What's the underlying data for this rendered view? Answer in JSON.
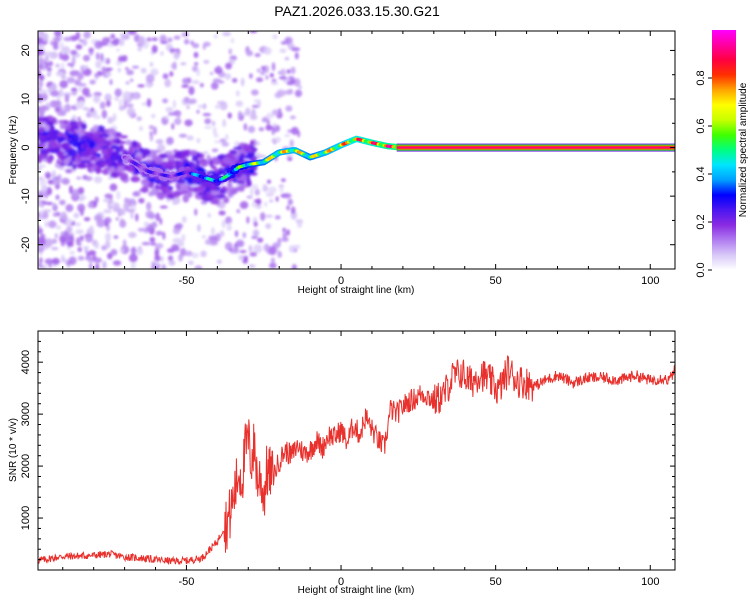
{
  "title": "PAZ1.2026.033.15.30.G21",
  "chart_data": [
    {
      "type": "heatmap",
      "name": "spectrogram",
      "xlabel": "Height of straight line (km)",
      "ylabel": "Frequency (Hz)",
      "xlim": [
        -98,
        108
      ],
      "ylim": [
        -25,
        24
      ],
      "xticks": [
        -50,
        0,
        50,
        100
      ],
      "yticks": [
        -20,
        -10,
        0,
        10,
        20
      ],
      "colorbar": {
        "label": "Normalized spectral amplitude",
        "range": [
          0,
          1
        ],
        "ticks": [
          0.0,
          0.2,
          0.4,
          0.6,
          0.8
        ],
        "tick_labels": [
          "0.0",
          "0.2",
          "0.4",
          "0.6",
          "0.8"
        ],
        "colors": [
          "#ffffff",
          "#d8c8f8",
          "#b07cf0",
          "#8a2be2",
          "#4b16f0",
          "#0000ff",
          "#00a0ff",
          "#00e5ff",
          "#00ff80",
          "#40ff00",
          "#c8ff00",
          "#ffff00",
          "#ffa500",
          "#ff3000",
          "#ff0040",
          "#ff00a0",
          "#ff00ff"
        ]
      },
      "ridge": {
        "x": [
          -98,
          -90,
          -80,
          -70,
          -62,
          -55,
          -50,
          -45,
          -40,
          -36,
          -33,
          -30,
          -25,
          -20,
          -15,
          -10,
          -5,
          0,
          5,
          10,
          15,
          20,
          30,
          50,
          70,
          90,
          108
        ],
        "y": [
          2,
          1,
          0,
          -2,
          -5,
          -6,
          -5,
          -6,
          -7,
          -5.5,
          -4,
          -3.5,
          -3,
          -1,
          -0.5,
          -2,
          -1,
          0.5,
          1.8,
          1,
          0.3,
          0,
          0,
          0,
          0,
          0,
          0
        ],
        "amplitude": [
          0.2,
          0.22,
          0.22,
          0.22,
          0.25,
          0.25,
          0.3,
          0.45,
          0.45,
          0.5,
          0.55,
          0.6,
          0.65,
          0.7,
          0.72,
          0.65,
          0.7,
          0.75,
          0.82,
          0.85,
          0.88,
          0.92,
          0.92,
          0.92,
          0.92,
          0.92,
          0.92
        ]
      }
    },
    {
      "type": "line",
      "name": "snr",
      "xlabel": "Height of straight line (km)",
      "ylabel": "SNR (10 * v/v)",
      "xlim": [
        -98,
        108
      ],
      "ylim": [
        0,
        4600
      ],
      "xticks": [
        -50,
        0,
        50,
        100
      ],
      "yticks": [
        1000,
        2000,
        3000,
        4000
      ],
      "color": "#e8302c",
      "series": [
        {
          "name": "SNR",
          "x": [
            -98,
            -90,
            -80,
            -75,
            -70,
            -65,
            -60,
            -55,
            -50,
            -45,
            -40,
            -38,
            -36,
            -34,
            -33,
            -32,
            -31,
            -30,
            -29,
            -28,
            -27,
            -26,
            -25,
            -24,
            -22,
            -20,
            -18,
            -16,
            -14,
            -12,
            -10,
            -8,
            -6,
            -4,
            -2,
            0,
            2,
            4,
            6,
            8,
            10,
            12,
            14,
            16,
            18,
            20,
            22,
            24,
            26,
            28,
            30,
            33,
            36,
            39,
            42,
            45,
            48,
            51,
            54,
            57,
            60,
            63,
            66,
            70,
            75,
            80,
            85,
            90,
            95,
            100,
            104,
            106,
            108
          ],
          "values": [
            180,
            260,
            280,
            310,
            250,
            230,
            200,
            170,
            180,
            230,
            550,
            800,
            1050,
            1600,
            1900,
            1750,
            2300,
            2500,
            2100,
            2400,
            1700,
            1800,
            1400,
            1900,
            1800,
            2100,
            2300,
            2200,
            2400,
            2250,
            2300,
            2500,
            2350,
            2600,
            2550,
            2700,
            2450,
            2800,
            2600,
            2950,
            2700,
            2500,
            2350,
            3100,
            3000,
            3150,
            3250,
            3300,
            3400,
            3350,
            3250,
            3350,
            3700,
            3800,
            3600,
            3800,
            3650,
            3450,
            3850,
            3650,
            3600,
            3550,
            3650,
            3750,
            3600,
            3700,
            3700,
            3650,
            3750,
            3650,
            3700,
            3650,
            3850
          ]
        }
      ]
    }
  ]
}
